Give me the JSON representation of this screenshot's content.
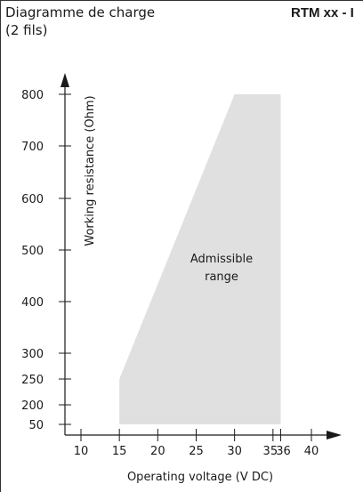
{
  "header": {
    "title_line1": "Diagramme de charge",
    "title_line2": "(2 fils)",
    "model": "RTM xx - I"
  },
  "chart_data": {
    "type": "area",
    "title": "Diagramme de charge (2 fils)",
    "xlabel": "Operating voltage  (V DC)",
    "ylabel": "Working resistance  (Ohm)",
    "x_ticks": [
      10,
      15,
      20,
      25,
      30,
      35,
      36,
      40
    ],
    "y_ticks": [
      50,
      200,
      250,
      300,
      400,
      500,
      600,
      700,
      800
    ],
    "region": {
      "label_line1": "Admissible",
      "label_line2": "range",
      "color": "#e0e0e0",
      "polygon": [
        [
          15,
          50
        ],
        [
          15,
          250
        ],
        [
          30,
          800
        ],
        [
          36,
          800
        ],
        [
          36,
          50
        ]
      ]
    }
  }
}
